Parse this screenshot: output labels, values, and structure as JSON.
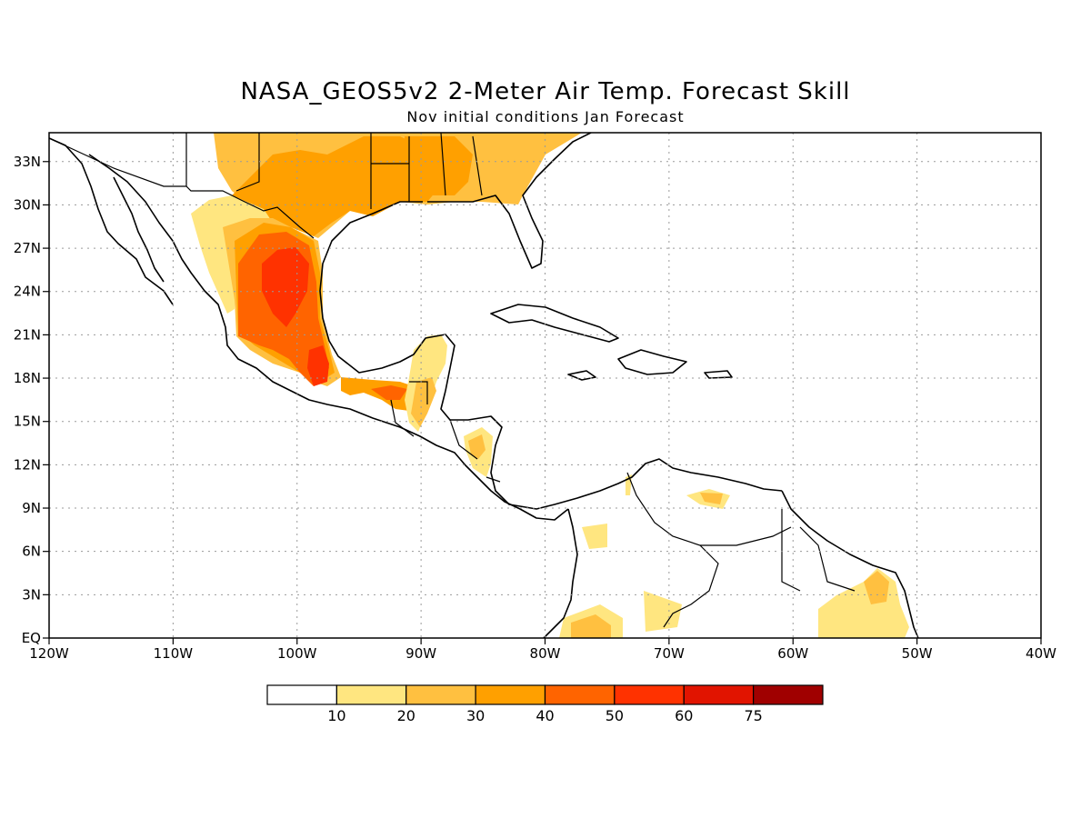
{
  "title": "NASA_GEOS5v2 2-Meter Air Temp. Forecast Skill",
  "subtitle": "Nov initial conditions  Jan Forecast",
  "map": {
    "lon_range": [
      -120,
      -40
    ],
    "lat_range": [
      0,
      35
    ],
    "lon_ticks": [
      {
        "value": -120,
        "label": "120W"
      },
      {
        "value": -110,
        "label": "110W"
      },
      {
        "value": -100,
        "label": "100W"
      },
      {
        "value": -90,
        "label": "90W"
      },
      {
        "value": -80,
        "label": "80W"
      },
      {
        "value": -70,
        "label": "70W"
      },
      {
        "value": -60,
        "label": "60W"
      },
      {
        "value": -50,
        "label": "50W"
      },
      {
        "value": -40,
        "label": "40W"
      }
    ],
    "lat_ticks": [
      {
        "value": 0,
        "label": "EQ"
      },
      {
        "value": 3,
        "label": "3N"
      },
      {
        "value": 6,
        "label": "6N"
      },
      {
        "value": 9,
        "label": "9N"
      },
      {
        "value": 12,
        "label": "12N"
      },
      {
        "value": 15,
        "label": "15N"
      },
      {
        "value": 18,
        "label": "18N"
      },
      {
        "value": 21,
        "label": "21N"
      },
      {
        "value": 24,
        "label": "24N"
      },
      {
        "value": 27,
        "label": "27N"
      },
      {
        "value": 30,
        "label": "30N"
      },
      {
        "value": 33,
        "label": "33N"
      }
    ],
    "grid": "dotted"
  },
  "colorbar": {
    "levels": [
      "10",
      "20",
      "30",
      "40",
      "50",
      "60",
      "75"
    ],
    "colors": [
      "#ffffff",
      "#ffe680",
      "#ffc040",
      "#ffa000",
      "#ff6400",
      "#ff3200",
      "#e11400",
      "#a00000"
    ]
  }
}
